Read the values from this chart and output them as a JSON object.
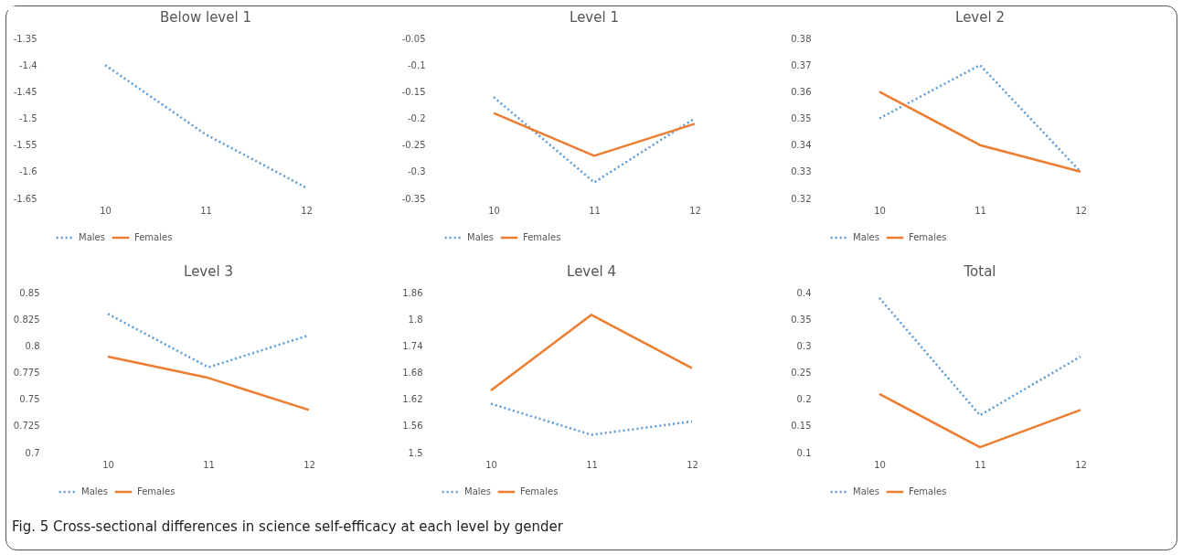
{
  "chart_data": [
    {
      "type": "line",
      "title": "Below level 1",
      "categories": [
        "10",
        "11",
        "12"
      ],
      "ylim": [
        -1.65,
        -1.35
      ],
      "yticks": [
        -1.65,
        -1.6,
        -1.55,
        -1.5,
        -1.45,
        -1.4,
        -1.35
      ],
      "grid": false,
      "legend": "bottom",
      "marker": "none",
      "series": [
        {
          "name": "Males",
          "color": "#5b9bd5",
          "line_style": "dotted",
          "values": [
            -1.4,
            -1.53,
            -1.63
          ]
        },
        {
          "name": "Females",
          "color": "#ed7d31",
          "line_style": "solid",
          "values": [
            null,
            null,
            null
          ]
        }
      ]
    },
    {
      "type": "line",
      "title": "Level 1",
      "categories": [
        "10",
        "11",
        "12"
      ],
      "ylim": [
        -0.35,
        -0.05
      ],
      "yticks": [
        -0.35,
        -0.3,
        -0.25,
        -0.2,
        -0.15,
        -0.1,
        -0.05
      ],
      "grid": false,
      "legend": "bottom",
      "marker": "none",
      "series": [
        {
          "name": "Males",
          "color": "#5b9bd5",
          "line_style": "dotted",
          "values": [
            -0.16,
            -0.32,
            -0.2
          ]
        },
        {
          "name": "Females",
          "color": "#ed7d31",
          "line_style": "solid",
          "values": [
            -0.19,
            -0.27,
            -0.21
          ]
        }
      ]
    },
    {
      "type": "line",
      "title": "Level 2",
      "categories": [
        "10",
        "11",
        "12"
      ],
      "ylim": [
        0.32,
        0.38
      ],
      "yticks": [
        0.32,
        0.33,
        0.34,
        0.35,
        0.36,
        0.37,
        0.38
      ],
      "grid": false,
      "legend": "bottom",
      "marker": "none",
      "series": [
        {
          "name": "Males",
          "color": "#5b9bd5",
          "line_style": "dotted",
          "values": [
            0.35,
            0.37,
            0.33
          ]
        },
        {
          "name": "Females",
          "color": "#ed7d31",
          "line_style": "solid",
          "values": [
            0.36,
            0.34,
            0.33
          ]
        }
      ]
    },
    {
      "type": "line",
      "title": "Level 3",
      "categories": [
        "10",
        "11",
        "12"
      ],
      "ylim": [
        0.7,
        0.85
      ],
      "yticks": [
        0.7,
        0.725,
        0.75,
        0.775,
        0.8,
        0.825,
        0.85
      ],
      "grid": false,
      "legend": "bottom",
      "marker": "none",
      "series": [
        {
          "name": "Males",
          "color": "#5b9bd5",
          "line_style": "dotted",
          "values": [
            0.83,
            0.78,
            0.81
          ]
        },
        {
          "name": "Females",
          "color": "#ed7d31",
          "line_style": "solid",
          "values": [
            0.79,
            0.77,
            0.74
          ]
        }
      ]
    },
    {
      "type": "line",
      "title": "Level 4",
      "categories": [
        "10",
        "11",
        "12"
      ],
      "ylim": [
        1.5,
        1.86
      ],
      "yticks": [
        1.5,
        1.56,
        1.62,
        1.68,
        1.74,
        1.8,
        1.86
      ],
      "grid": false,
      "legend": "bottom",
      "marker": "none",
      "series": [
        {
          "name": "Males",
          "color": "#5b9bd5",
          "line_style": "dotted",
          "values": [
            1.61,
            1.54,
            1.57
          ]
        },
        {
          "name": "Females",
          "color": "#ed7d31",
          "line_style": "solid",
          "values": [
            1.64,
            1.81,
            1.69
          ]
        }
      ]
    },
    {
      "type": "line",
      "title": "Total",
      "categories": [
        "10",
        "11",
        "12"
      ],
      "ylim": [
        0.1,
        0.4
      ],
      "yticks": [
        0.1,
        0.15,
        0.2,
        0.25,
        0.3,
        0.35,
        0.4
      ],
      "grid": false,
      "legend": "bottom",
      "marker": "none",
      "annotations": [
        "Fig. 5 Cross-sectional differences in science self-efficacy at each level by gender"
      ],
      "series": [
        {
          "name": "Males",
          "color": "#5b9bd5",
          "line_style": "dotted",
          "values": [
            0.39,
            0.17,
            0.28
          ]
        },
        {
          "name": "Females",
          "color": "#ed7d31",
          "line_style": "solid",
          "values": [
            0.21,
            0.11,
            0.18
          ]
        }
      ]
    }
  ]
}
